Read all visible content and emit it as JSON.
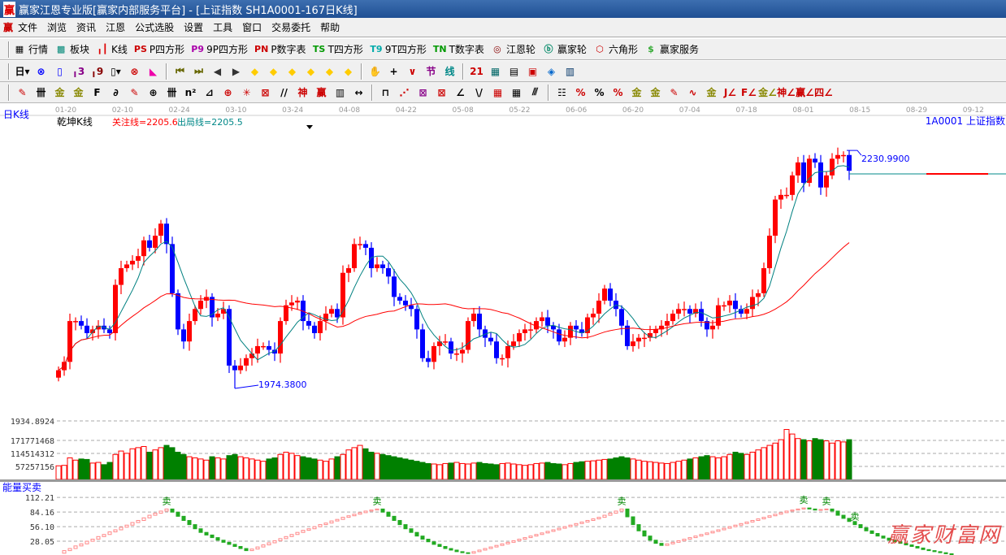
{
  "window": {
    "title": "赢家江恩专业版[赢家内部服务平台] - [上证指数  SH1A0001-167日K线]",
    "logo": "赢"
  },
  "menu": {
    "logo": "赢",
    "items": [
      "文件",
      "浏览",
      "资讯",
      "江恩",
      "公式选股",
      "设置",
      "工具",
      "窗口",
      "交易委托",
      "帮助"
    ]
  },
  "toolbar1": [
    {
      "icon": "grid-table-icon",
      "glyph": "▦",
      "color": "#000",
      "label": "行情"
    },
    {
      "icon": "blocks-icon",
      "glyph": "▩",
      "color": "#087",
      "label": "板块"
    },
    {
      "icon": "kline-icon",
      "glyph": "╻┃",
      "color": "#d00",
      "label": "K线"
    },
    {
      "icon": "ps-icon",
      "glyph": "PS",
      "color": "#c00",
      "label": "P四方形"
    },
    {
      "icon": "p9-icon",
      "glyph": "P9",
      "color": "#a0a",
      "label": "9P四方形"
    },
    {
      "icon": "pn-icon",
      "glyph": "PN",
      "color": "#c00",
      "label": "P数字表"
    },
    {
      "icon": "ts-icon",
      "glyph": "TS",
      "color": "#090",
      "label": "T四方形"
    },
    {
      "icon": "t9-icon",
      "glyph": "T9",
      "color": "#0aa",
      "label": "9T四方形"
    },
    {
      "icon": "tn-icon",
      "glyph": "TN",
      "color": "#090",
      "label": "T数字表"
    },
    {
      "icon": "gann-wheel-icon",
      "glyph": "◎",
      "color": "#800",
      "label": "江恩轮"
    },
    {
      "icon": "winner-wheel-icon",
      "glyph": "ⓑ",
      "color": "#086",
      "label": "赢家轮"
    },
    {
      "icon": "hexagon-icon",
      "glyph": "⬡",
      "color": "#c00",
      "label": "六角形"
    },
    {
      "icon": "dollar-icon",
      "glyph": "$",
      "color": "#3a3",
      "label": "赢家服务"
    }
  ],
  "toolbar2": [
    {
      "icon": "period-day-dropdown",
      "glyph": "日▾",
      "color": "#000"
    },
    {
      "icon": "chart-style-icon",
      "glyph": "⊗",
      "color": "#00f"
    },
    {
      "icon": "notes-icon",
      "glyph": "▯",
      "color": "#00f"
    },
    {
      "icon": "bars3-icon",
      "glyph": "╻3",
      "color": "#808"
    },
    {
      "icon": "bars9-icon",
      "glyph": "╻9",
      "color": "#800"
    },
    {
      "icon": "candle-dropdown",
      "glyph": "▯▾",
      "color": "#000"
    },
    {
      "icon": "pattern-icon",
      "glyph": "⊗",
      "color": "#c00"
    },
    {
      "icon": "flag-icon",
      "glyph": "◣",
      "color": "#e0a"
    },
    {
      "icon": "first-icon",
      "glyph": "⏮",
      "color": "#660"
    },
    {
      "icon": "last-icon",
      "glyph": "⏭",
      "color": "#660"
    },
    {
      "icon": "prev-icon",
      "glyph": "◀",
      "color": "#333"
    },
    {
      "icon": "next-icon",
      "glyph": "▶",
      "color": "#333"
    },
    {
      "icon": "left-arrow-icon",
      "glyph": "◆",
      "color": "#fc0"
    },
    {
      "icon": "right-arrow-icon",
      "glyph": "◆",
      "color": "#fc0"
    },
    {
      "icon": "expand-h-icon",
      "glyph": "◆",
      "color": "#fc0"
    },
    {
      "icon": "shrink-icon",
      "glyph": "◆",
      "color": "#fc0"
    },
    {
      "icon": "zoom-in-icon",
      "glyph": "◆",
      "color": "#fc0"
    },
    {
      "icon": "zoom-out-icon",
      "glyph": "◆",
      "color": "#fc0"
    },
    {
      "icon": "hand-icon",
      "glyph": "✋",
      "color": "#000"
    },
    {
      "icon": "crosshair-icon",
      "glyph": "+",
      "color": "#000"
    },
    {
      "icon": "draw-line-icon",
      "glyph": "∨",
      "color": "#c00"
    },
    {
      "icon": "section-icon",
      "glyph": "节",
      "color": "#808"
    },
    {
      "icon": "line-text-icon",
      "glyph": "线",
      "color": "#088"
    },
    {
      "icon": "calendar-icon",
      "glyph": "21",
      "color": "#c00"
    },
    {
      "icon": "calculator-icon",
      "glyph": "▦",
      "color": "#066"
    },
    {
      "icon": "report-icon",
      "glyph": "▤",
      "color": "#000"
    },
    {
      "icon": "save-icon",
      "glyph": "▣",
      "color": "#c00"
    },
    {
      "icon": "network-icon",
      "glyph": "◈",
      "color": "#06c"
    },
    {
      "icon": "printer-icon",
      "glyph": "▥",
      "color": "#036"
    }
  ],
  "toolbar3": [
    {
      "icon": "pen-icon",
      "glyph": "✎",
      "color": "#c00"
    },
    {
      "icon": "tick-lines-icon",
      "glyph": "卌",
      "color": "#000"
    },
    {
      "icon": "gold-line-icon",
      "glyph": "金",
      "color": "#880"
    },
    {
      "icon": "gold-line2-icon",
      "glyph": "金",
      "color": "#880"
    },
    {
      "icon": "fib-icon",
      "glyph": "F",
      "color": "#000"
    },
    {
      "icon": "spiral-icon",
      "glyph": "∂",
      "color": "#000"
    },
    {
      "icon": "pen2-icon",
      "glyph": "✎",
      "color": "#c00"
    },
    {
      "icon": "circle-grid-icon",
      "glyph": "⊕",
      "color": "#000"
    },
    {
      "icon": "cycle-lines-icon",
      "glyph": "卌",
      "color": "#000"
    },
    {
      "icon": "n2-icon",
      "glyph": "n²",
      "color": "#000"
    },
    {
      "icon": "triangle-icon",
      "glyph": "⊿",
      "color": "#000"
    },
    {
      "icon": "target-icon",
      "glyph": "⊕",
      "color": "#c00"
    },
    {
      "icon": "star-icon",
      "glyph": "✳",
      "color": "#c00"
    },
    {
      "icon": "square-target-icon",
      "glyph": "⊠",
      "color": "#c00"
    },
    {
      "icon": "slash-lines-icon",
      "glyph": "//",
      "color": "#000"
    },
    {
      "icon": "shen-icon",
      "glyph": "神",
      "color": "#c00"
    },
    {
      "icon": "ying-icon",
      "glyph": "赢",
      "color": "#c00"
    },
    {
      "icon": "ruler-icon",
      "glyph": "▥",
      "color": "#000"
    },
    {
      "icon": "measure-icon",
      "glyph": "↔",
      "color": "#000"
    },
    {
      "icon": "box-icon",
      "glyph": "⊓",
      "color": "#000"
    },
    {
      "icon": "fan-icon",
      "glyph": "⋰",
      "color": "#c00"
    },
    {
      "icon": "square-fan-icon",
      "glyph": "⊠",
      "color": "#808"
    },
    {
      "icon": "square-fan2-icon",
      "glyph": "⊠",
      "color": "#c00"
    },
    {
      "icon": "angle-icon",
      "glyph": "∠",
      "color": "#000"
    },
    {
      "icon": "v-icon",
      "glyph": "\\/",
      "color": "#000"
    },
    {
      "icon": "grid-icon",
      "glyph": "▦",
      "color": "#c00"
    },
    {
      "icon": "grid2-icon",
      "glyph": "▦",
      "color": "#000"
    },
    {
      "icon": "parallel-icon",
      "glyph": "⫻",
      "color": "#000"
    },
    {
      "icon": "scale-icon",
      "glyph": "☷",
      "color": "#000"
    },
    {
      "icon": "percent-line-icon",
      "glyph": "%",
      "color": "#c00"
    },
    {
      "icon": "percent-icon",
      "glyph": "%",
      "color": "#000"
    },
    {
      "icon": "percent-levels-icon",
      "glyph": "%",
      "color": "#c00"
    },
    {
      "icon": "gold-circle-icon",
      "glyph": "金",
      "color": "#880"
    },
    {
      "icon": "gold-levels-icon",
      "glyph": "金",
      "color": "#880"
    },
    {
      "icon": "pen3-icon",
      "glyph": "✎",
      "color": "#c00"
    },
    {
      "icon": "wave-icon",
      "glyph": "∿",
      "color": "#c00"
    },
    {
      "icon": "gold-band-icon",
      "glyph": "金",
      "color": "#880"
    },
    {
      "icon": "j-fan-icon",
      "glyph": "J∠",
      "color": "#c00"
    },
    {
      "icon": "f-fan-icon",
      "glyph": "F∠",
      "color": "#c00"
    },
    {
      "icon": "gold-fan-icon",
      "glyph": "金∠",
      "color": "#880"
    },
    {
      "icon": "shen-fan-icon",
      "glyph": "神∠",
      "color": "#c00"
    },
    {
      "icon": "ying-fan-icon",
      "glyph": "赢∠",
      "color": "#c00"
    },
    {
      "icon": "four-fan-icon",
      "glyph": "四∠",
      "color": "#c00"
    }
  ],
  "chart": {
    "period_label": "日K线",
    "indicator_name": "乾坤K线",
    "focus_line": "关注线=2205.6",
    "exit_line": "出局线=2205.5",
    "focus_value": 2205.6,
    "symbol": "1A0001  上证指数",
    "date_labels": [
      "01-20",
      "02-10",
      "02-24",
      "03-10",
      "03-24",
      "04-08",
      "04-22",
      "05-08",
      "05-22",
      "06-06",
      "06-20",
      "07-04",
      "07-18",
      "08-01",
      "08-15",
      "08-29",
      "09-12"
    ],
    "high_label": "2230.9900",
    "low_label": "1974.3800",
    "high": 2230.99,
    "low": 1974.38,
    "colors": {
      "up": "#ff0000",
      "down": "#0000ff",
      "ma_short": "#008080",
      "ma_long": "#ff0000"
    },
    "close": [
      1994,
      2003,
      2047,
      2047,
      2042,
      2034,
      2038,
      2042,
      2038,
      2034,
      2086,
      2104,
      2108,
      2112,
      2117,
      2134,
      2126,
      2139,
      2152,
      2130,
      2077,
      2038,
      2025,
      2047,
      2060,
      2069,
      2073,
      2051,
      2055,
      2060,
      1999,
      1994,
      1999,
      2007,
      2012,
      2020,
      2020,
      2016,
      2012,
      2047,
      2064,
      2067,
      2069,
      2047,
      2042,
      2034,
      2047,
      2055,
      2060,
      2051,
      2099,
      2104,
      2130,
      2130,
      2126,
      2104,
      2108,
      2104,
      2095,
      2073,
      2069,
      2064,
      2060,
      2038,
      2007,
      2003,
      2020,
      2025,
      2025,
      2012,
      2012,
      2016,
      2047,
      2055,
      2038,
      2029,
      2025,
      2007,
      2007,
      2020,
      2025,
      2034,
      2038,
      2038,
      2047,
      2051,
      2042,
      2038,
      2025,
      2029,
      2042,
      2038,
      2034,
      2051,
      2055,
      2069,
      2082,
      2069,
      2060,
      2042,
      2020,
      2025,
      2029,
      2029,
      2034,
      2038,
      2042,
      2047,
      2055,
      2060,
      2060,
      2055,
      2060,
      2047,
      2038,
      2042,
      2064,
      2064,
      2069,
      2060,
      2055,
      2060,
      2073,
      2077,
      2104,
      2139,
      2178,
      2183,
      2183,
      2204,
      2218,
      2196,
      2222,
      2218,
      2191,
      2204,
      2222,
      2226,
      2226,
      2209
    ]
  },
  "volume": {
    "axis_labels": [
      "1934.8924",
      "171771468",
      "114514312",
      "57257156"
    ],
    "ticks": [
      1934.8924,
      171771468,
      114514312,
      57257156
    ],
    "values_millions": [
      60,
      62,
      95,
      85,
      90,
      88,
      72,
      75,
      65,
      75,
      110,
      125,
      115,
      135,
      140,
      145,
      120,
      130,
      140,
      150,
      140,
      120,
      110,
      100,
      95,
      90,
      85,
      100,
      95,
      90,
      105,
      110,
      100,
      95,
      90,
      85,
      80,
      90,
      95,
      110,
      120,
      115,
      105,
      100,
      95,
      90,
      85,
      80,
      90,
      100,
      110,
      130,
      140,
      150,
      135,
      120,
      115,
      110,
      105,
      100,
      95,
      90,
      85,
      80,
      75,
      70,
      68,
      65,
      70,
      72,
      75,
      70,
      68,
      72,
      75,
      70,
      68,
      65,
      70,
      72,
      68,
      65,
      62,
      65,
      70,
      72,
      75,
      70,
      68,
      65,
      70,
      75,
      78,
      80,
      82,
      85,
      88,
      90,
      95,
      100,
      95,
      90,
      85,
      80,
      78,
      75,
      72,
      70,
      75,
      80,
      85,
      90,
      95,
      100,
      105,
      100,
      95,
      100,
      110,
      120,
      115,
      110,
      120,
      130,
      140,
      150,
      160,
      175,
      220,
      200,
      180,
      175,
      170,
      180,
      175,
      170,
      160,
      170,
      165,
      175
    ]
  },
  "energy": {
    "title": "能量买卖",
    "axis_labels": [
      "112.21",
      "84.16",
      "56.10",
      "28.05"
    ],
    "ticks": [
      112.21,
      84.16,
      56.1,
      28.05
    ],
    "sell_label": "卖",
    "sell_indices": [
      19,
      56,
      99,
      131,
      135,
      140
    ],
    "values": [
      5,
      10,
      14,
      19,
      23,
      28,
      32,
      37,
      41,
      46,
      50,
      55,
      59,
      64,
      68,
      73,
      78,
      82,
      86,
      90,
      84,
      76,
      68,
      60,
      52,
      45,
      40,
      35,
      30,
      26,
      22,
      18,
      14,
      10,
      13,
      17,
      21,
      25,
      29,
      33,
      37,
      41,
      45,
      49,
      52,
      56,
      60,
      63,
      67,
      70,
      74,
      77,
      80,
      83,
      86,
      88,
      90,
      84,
      76,
      68,
      60,
      52,
      45,
      38,
      32,
      27,
      22,
      18,
      14,
      11,
      8,
      6,
      5,
      8,
      11,
      14,
      17,
      20,
      23,
      26,
      29,
      32,
      35,
      38,
      41,
      44,
      47,
      50,
      53,
      56,
      59,
      62,
      65,
      68,
      71,
      74,
      78,
      82,
      86,
      90,
      75,
      60,
      48,
      38,
      30,
      24,
      20,
      23,
      26,
      29,
      32,
      35,
      38,
      41,
      44,
      47,
      50,
      53,
      56,
      59,
      62,
      65,
      68,
      71,
      74,
      77,
      80,
      83,
      86,
      88,
      90,
      92,
      90,
      88,
      89,
      90,
      86,
      78,
      72,
      66,
      60,
      54,
      48,
      43,
      38,
      34,
      30,
      27,
      24,
      21,
      18,
      15,
      12,
      10,
      8,
      6,
      4,
      2
    ]
  },
  "watermark": "赢家财富网"
}
